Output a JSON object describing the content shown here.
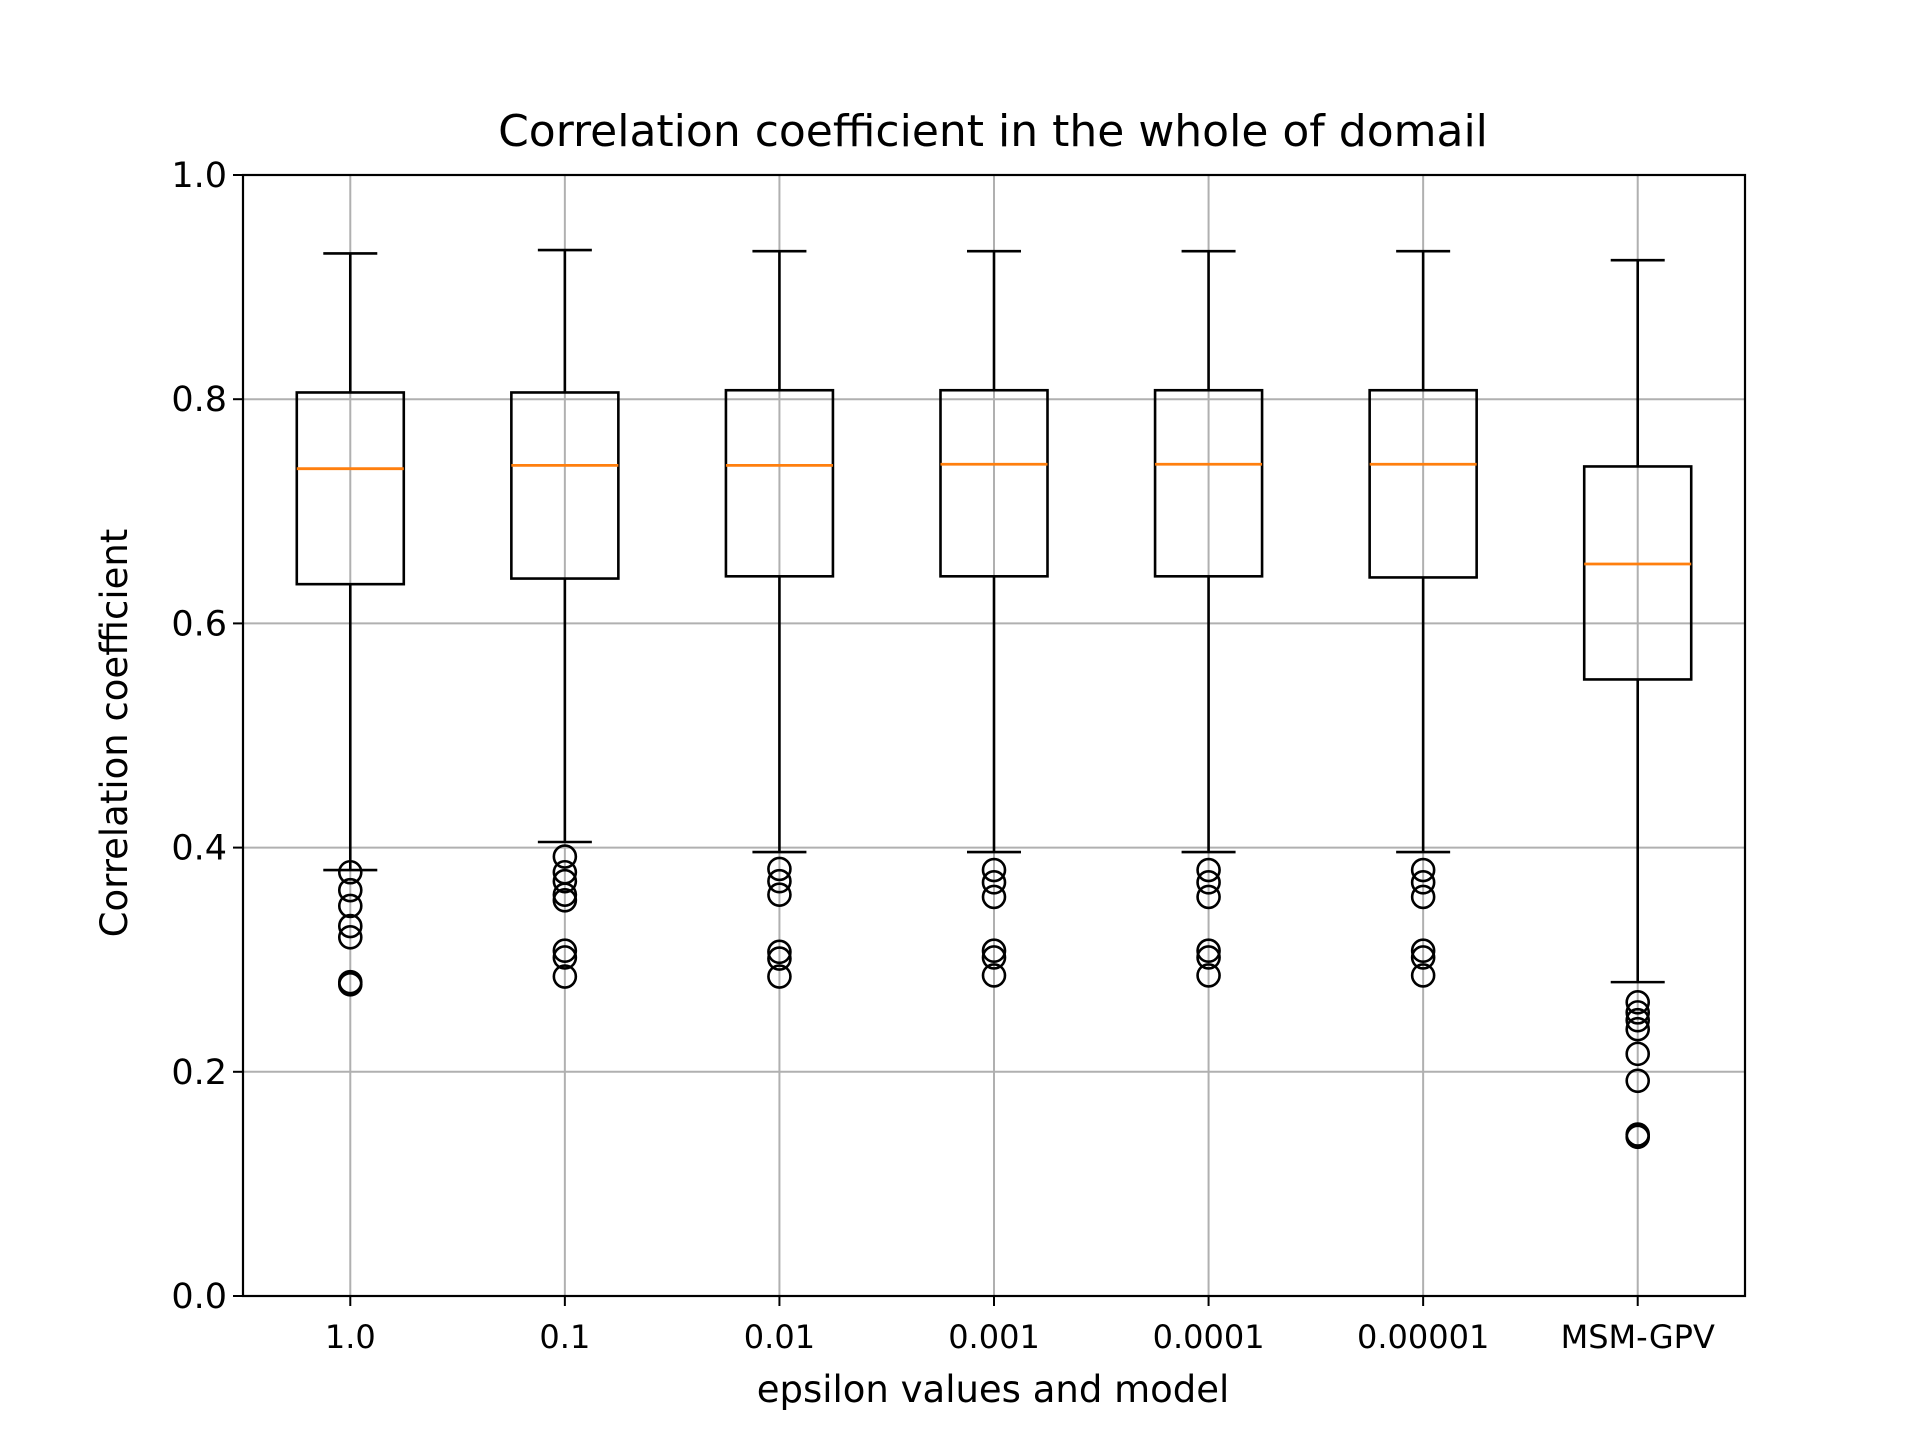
{
  "chart_data": {
    "type": "box",
    "title": "Correlation coefficient in the whole of domail",
    "xlabel": "epsilon values and model",
    "ylabel": "Correlation coefficient",
    "ylim": [
      0.0,
      1.0
    ],
    "yticks": [
      "0.0",
      "0.2",
      "0.4",
      "0.6",
      "0.8",
      "1.0"
    ],
    "grid": true,
    "categories": [
      "1.0",
      "0.1",
      "0.01",
      "0.001",
      "0.0001",
      "0.00001",
      "MSM-GPV"
    ],
    "boxes": [
      {
        "category": "1.0",
        "whisker_low": 0.38,
        "q1": 0.635,
        "median": 0.738,
        "q3": 0.806,
        "whisker_high": 0.93,
        "outliers": [
          0.378,
          0.362,
          0.348,
          0.33,
          0.32,
          0.28,
          0.278
        ]
      },
      {
        "category": "0.1",
        "whisker_low": 0.405,
        "q1": 0.64,
        "median": 0.741,
        "q3": 0.806,
        "whisker_high": 0.933,
        "outliers": [
          0.392,
          0.378,
          0.37,
          0.358,
          0.353,
          0.308,
          0.302,
          0.285
        ]
      },
      {
        "category": "0.01",
        "whisker_low": 0.396,
        "q1": 0.642,
        "median": 0.741,
        "q3": 0.808,
        "whisker_high": 0.932,
        "outliers": [
          0.381,
          0.37,
          0.358,
          0.307,
          0.301,
          0.285
        ]
      },
      {
        "category": "0.001",
        "whisker_low": 0.396,
        "q1": 0.642,
        "median": 0.742,
        "q3": 0.808,
        "whisker_high": 0.932,
        "outliers": [
          0.38,
          0.369,
          0.356,
          0.308,
          0.302,
          0.286
        ]
      },
      {
        "category": "0.0001",
        "whisker_low": 0.396,
        "q1": 0.642,
        "median": 0.742,
        "q3": 0.808,
        "whisker_high": 0.932,
        "outliers": [
          0.38,
          0.369,
          0.356,
          0.308,
          0.302,
          0.286
        ]
      },
      {
        "category": "0.00001",
        "whisker_low": 0.396,
        "q1": 0.641,
        "median": 0.742,
        "q3": 0.808,
        "whisker_high": 0.932,
        "outliers": [
          0.38,
          0.369,
          0.356,
          0.308,
          0.302,
          0.286
        ]
      },
      {
        "category": "MSM-GPV",
        "whisker_low": 0.28,
        "q1": 0.55,
        "median": 0.653,
        "q3": 0.74,
        "whisker_high": 0.924,
        "outliers": [
          0.262,
          0.253,
          0.246,
          0.238,
          0.216,
          0.192,
          0.144,
          0.142
        ]
      }
    ],
    "colors": {
      "box": "#000000",
      "median": "#ff7f0e",
      "grid": "#b0b0b0",
      "outlier": "#000000"
    }
  }
}
